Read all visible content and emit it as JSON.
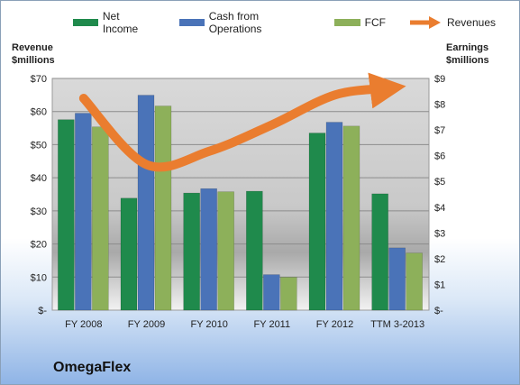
{
  "company": "OmegaFlex",
  "legend": [
    {
      "label": "Net Income",
      "color": "#1f8a4c",
      "kind": "bar"
    },
    {
      "label": "Cash from Operations",
      "color": "#4a73b8",
      "kind": "bar"
    },
    {
      "label": "FCF",
      "color": "#8db05a",
      "kind": "bar"
    },
    {
      "label": "Revenues",
      "color": "#ea7d2f",
      "kind": "arrow"
    }
  ],
  "axes": {
    "left_title": [
      "Revenue",
      "$millions"
    ],
    "right_title": [
      "Earnings",
      "$millions"
    ]
  },
  "chart_data": {
    "type": "bar",
    "categories": [
      "FY 2008",
      "FY 2009",
      "FY 2010",
      "FY 2011",
      "FY 2012",
      "TTM 3-2013"
    ],
    "series": [
      {
        "name": "Net Income",
        "axis": "right",
        "color": "#1f8a4c",
        "values": [
          7.4,
          4.35,
          4.55,
          4.62,
          6.88,
          4.52
        ]
      },
      {
        "name": "Cash from Operations",
        "axis": "right",
        "color": "#4a73b8",
        "values": [
          7.65,
          8.35,
          4.72,
          1.38,
          7.3,
          2.42
        ]
      },
      {
        "name": "FCF",
        "axis": "right",
        "color": "#8db05a",
        "values": [
          7.12,
          7.93,
          4.6,
          1.28,
          7.15,
          2.22
        ]
      },
      {
        "name": "Revenues",
        "axis": "left",
        "type": "line",
        "color": "#ea7d2f",
        "values": [
          64,
          44,
          48,
          56,
          65,
          67
        ]
      }
    ],
    "y_left": {
      "ylim": [
        0,
        70
      ],
      "ticks": [
        "$-",
        "$10",
        "$20",
        "$30",
        "$40",
        "$50",
        "$60",
        "$70"
      ]
    },
    "y_right": {
      "ylim": [
        0,
        9
      ],
      "ticks": [
        "$-",
        "$1",
        "$2",
        "$3",
        "$4",
        "$5",
        "$6",
        "$7",
        "$8",
        "$9"
      ]
    },
    "grid": true,
    "legend_position": "top"
  }
}
